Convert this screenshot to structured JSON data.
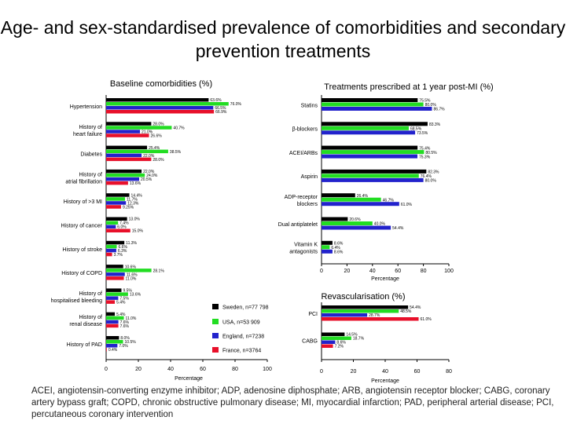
{
  "slide": {
    "title": "Age- and sex-standardised prevalence of comorbidities and secondary prevention treatments",
    "footnote": "ACEI, angiotensin-converting enzyme inhibitor; ADP, adenosine diphosphate; ARB, angiotensin receptor blocker; CABG, coronary artery bypass graft; COPD, chronic obstructive pulmonary disease; MI, myocardial infarction; PAD, peripheral arterial disease; PCI, percutaneous coronary intervention"
  },
  "colors": {
    "Sweden": "#000000",
    "USA": "#22dd22",
    "England": "#2222cc",
    "France": "#e8102a"
  },
  "chart_data": [
    {
      "type": "bar",
      "orientation": "horizontal",
      "title": "Baseline comorbidities (%)",
      "xlabel": "Percentage",
      "xlim": [
        0,
        100
      ],
      "xticks": [
        "0",
        "20",
        "40",
        "60",
        "80",
        "100"
      ],
      "categories": [
        "Hypertension",
        "History of heart failure",
        "Diabetes",
        "History of atrial fibrillation",
        "History of >3 MI",
        "History of cancer",
        "History of stroke",
        "History of COPD",
        "History of hospitalised bleeding",
        "History of renal disease",
        "History of PAD"
      ],
      "series": [
        {
          "name": "Sweden, n=77 798",
          "values": [
            63.6,
            28.0,
            25.4,
            22.0,
            14.4,
            13.0,
            11.3,
            10.6,
            9.5,
            5.4,
            8.0
          ],
          "labels": [
            "63.6%",
            "28.0%",
            "25.4%",
            "22.0%",
            "14.4%",
            "13.0%",
            "11.3%",
            "10.6%",
            "9.5%",
            "5.4%",
            "8.0%"
          ]
        },
        {
          "name": "USA, n=53 909",
          "values": [
            76.0,
            40.7,
            38.5,
            24.0,
            11.7,
            7.4,
            6.6,
            28.1,
            13.6,
            11.0,
            10.5
          ],
          "labels": [
            "76.0%",
            "40.7%",
            "38.5%",
            "24.0%",
            "11.7%",
            "7.4%",
            "6.6%",
            "28.1%",
            "13.6%",
            "11.0%",
            "10.5%"
          ]
        },
        {
          "name": "England, n=7238",
          "values": [
            66.5,
            21.0,
            22.0,
            20.5,
            12.3,
            6.0,
            6.3,
            11.6,
            7.5,
            7.6,
            7.0
          ],
          "labels": [
            "66.5%",
            "21.0%",
            "22.0%",
            "20.5%",
            "12.3%",
            "6.0%",
            "6.3%",
            "11.6%",
            "7.5%",
            "7.6%",
            "7.0%"
          ]
        },
        {
          "name": "France, n=3764",
          "values": [
            66.9,
            26.6,
            28.0,
            13.6,
            9.25,
            15.0,
            3.7,
            11.0,
            5.4,
            7.6,
            0.4
          ],
          "labels": [
            "66.9%",
            "26.6%",
            "28.0%",
            "13.6%",
            "9.25%",
            "15.0%",
            "3.7%",
            "11.0%",
            "5.4%",
            "7.6%",
            "0.4%"
          ]
        }
      ]
    },
    {
      "type": "bar",
      "orientation": "horizontal",
      "title": "Treatments prescribed at 1 year post-MI (%)",
      "xlabel": "Percentage",
      "xlim": [
        0,
        100
      ],
      "xticks": [
        "0",
        "20",
        "40",
        "60",
        "80",
        "100"
      ],
      "categories": [
        "Statins",
        "β-blockers",
        "ACEI/ARBs",
        "Aspirin",
        "ADP-receptor blockers",
        "Dual antiplatelet",
        "Vitamin K antagonists"
      ],
      "series": [
        {
          "name": "Sweden, n=77 798",
          "values": [
            75.5,
            83.3,
            75.4,
            82.3,
            26.4,
            20.6,
            8.6
          ],
          "labels": [
            "75.5%",
            "83.3%",
            "75.4%",
            "82.3%",
            "26.4%",
            "20.6%",
            "8.6%"
          ]
        },
        {
          "name": "USA, n=53 909",
          "values": [
            80.0,
            68.5,
            80.5,
            76.4,
            46.7,
            40.0,
            6.4
          ],
          "labels": [
            "80.0%",
            "68.5%",
            "80.5%",
            "76.4%",
            "46.7%",
            "40.0%",
            "6.4%"
          ]
        },
        {
          "name": "England, n=7238",
          "values": [
            86.7,
            73.5,
            75.3,
            80.0,
            61.0,
            54.4,
            8.6
          ],
          "labels": [
            "86.7%",
            "73.5%",
            "75.3%",
            "80.0%",
            "61.0%",
            "54.4%",
            "8.6%"
          ]
        }
      ]
    },
    {
      "type": "bar",
      "orientation": "horizontal",
      "title": "Revascularisation (%)",
      "xlabel": "Percentage",
      "xlim": [
        0,
        80
      ],
      "xticks": [
        "0",
        "20",
        "40",
        "60",
        "80"
      ],
      "categories": [
        "PCI",
        "CABG"
      ],
      "series": [
        {
          "name": "Sweden, n=77 798",
          "values": [
            54.4,
            14.5
          ],
          "labels": [
            "54.4%",
            "14.5%"
          ]
        },
        {
          "name": "USA, n=53 909",
          "values": [
            48.5,
            18.7
          ],
          "labels": [
            "48.5%",
            "18.7%"
          ]
        },
        {
          "name": "England, n=7238",
          "values": [
            28.7,
            8.6
          ],
          "labels": [
            "28.7%",
            "8.6%"
          ]
        },
        {
          "name": "France, n=3764",
          "values": [
            61.0,
            7.2
          ],
          "labels": [
            "61.0%",
            "7.2%"
          ]
        }
      ]
    }
  ]
}
